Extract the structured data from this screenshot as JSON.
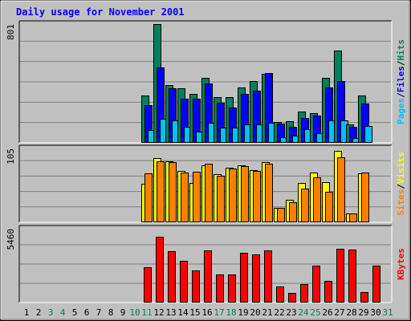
{
  "colors": {
    "background": "#C0C0C0",
    "title": "#0000FF",
    "hits": "#00805C",
    "files": "#0000FF",
    "pages": "#00C0FF",
    "visits": "#FFFF00",
    "sites": "#FF8000",
    "kbytes": "#FF0000",
    "weekend_day": "#00805C",
    "weekday": "#000000",
    "grid": "#808080"
  },
  "chart_data": {
    "type": "bar",
    "title": "Daily usage for November 2001",
    "days": [
      "1",
      "2",
      "3",
      "4",
      "5",
      "6",
      "7",
      "8",
      "9",
      "10",
      "11",
      "12",
      "13",
      "14",
      "15",
      "16",
      "17",
      "18",
      "19",
      "20",
      "21",
      "22",
      "23",
      "24",
      "25",
      "26",
      "27",
      "28",
      "29",
      "30",
      "31"
    ],
    "weekend_days": [
      "3",
      "4",
      "10",
      "11",
      "17",
      "18",
      "24",
      "25",
      "31"
    ],
    "panels": [
      {
        "name": "hits-files-pages",
        "scale_max_label": "801",
        "ymax": 801,
        "legend": [
          {
            "text": "Pages",
            "color": "#00C0FF"
          },
          {
            "text": "/",
            "color": "#000000"
          },
          {
            "text": "Files",
            "color": "#0000FF"
          },
          {
            "text": "/",
            "color": "#000000"
          },
          {
            "text": "Hits",
            "color": "#00805C"
          }
        ],
        "series": [
          {
            "name": "Hits",
            "color": "#00805C",
            "values": [
              0,
              0,
              0,
              0,
              0,
              0,
              0,
              0,
              0,
              0,
              320,
              801,
              390,
              370,
              330,
              440,
              310,
              310,
              375,
              415,
              465,
              140,
              145,
              210,
              200,
              440,
              625,
              125,
              320,
              0,
              0
            ]
          },
          {
            "name": "Files",
            "color": "#0000FF",
            "values": [
              0,
              0,
              0,
              0,
              0,
              0,
              0,
              0,
              0,
              0,
              255,
              510,
              370,
              300,
              300,
              400,
              270,
              240,
              330,
              350,
              470,
              130,
              110,
              170,
              185,
              375,
              415,
              110,
              265,
              0,
              0
            ]
          },
          {
            "name": "Pages",
            "color": "#00C0FF",
            "values": [
              0,
              0,
              0,
              0,
              0,
              0,
              0,
              0,
              0,
              0,
              85,
              160,
              150,
              110,
              75,
              135,
              105,
              105,
              125,
              125,
              135,
              40,
              50,
              90,
              65,
              150,
              150,
              30,
              115,
              0,
              0
            ]
          }
        ]
      },
      {
        "name": "visits-sites",
        "scale_max_label": "105",
        "ymax": 105,
        "legend": [
          {
            "text": "Sites",
            "color": "#FF8000"
          },
          {
            "text": "/",
            "color": "#000000"
          },
          {
            "text": "Visits",
            "color": "#FFFF00"
          }
        ],
        "series": [
          {
            "name": "Visits",
            "color": "#FFFF00",
            "values": [
              0,
              0,
              0,
              0,
              0,
              0,
              0,
              0,
              0,
              0,
              55,
              91,
              87,
              73,
              56,
              81,
              69,
              78,
              81,
              74,
              86,
              21,
              32,
              56,
              71,
              57,
              102,
              13,
              70,
              0,
              0
            ]
          },
          {
            "name": "Sites",
            "color": "#FF8000",
            "values": [
              0,
              0,
              0,
              0,
              0,
              0,
              0,
              0,
              0,
              0,
              70,
              87,
              86,
              71,
              72,
              83,
              66,
              77,
              80,
              73,
              83,
              20,
              28,
              48,
              64,
              43,
              93,
              13,
              71,
              0,
              0
            ]
          }
        ]
      },
      {
        "name": "kbytes",
        "scale_max_label": "5460",
        "ymax": 5460,
        "legend": [
          {
            "text": "KBytes",
            "color": "#FF0000"
          }
        ],
        "series": [
          {
            "name": "KBytes",
            "color": "#FF0000",
            "values": [
              0,
              0,
              0,
              0,
              0,
              0,
              0,
              0,
              0,
              0,
              2590,
              4860,
              3780,
              3100,
              2380,
              3860,
              2090,
              2090,
              3690,
              3560,
              3850,
              1210,
              730,
              1390,
              2720,
              1580,
              3960,
              3910,
              770,
              2730,
              0
            ]
          }
        ]
      }
    ]
  }
}
